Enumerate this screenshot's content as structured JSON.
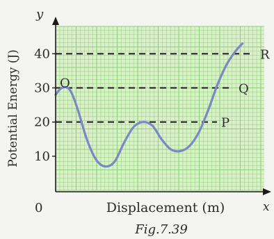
{
  "chart_data": {
    "type": "line",
    "xlabel": "Displacement (m)",
    "ylabel": "Potential Energy (J)",
    "x_axis_symbol": "x",
    "y_axis_symbol": "y",
    "origin_label": "0",
    "caption": "Fig.7.39",
    "ylim": [
      0,
      48
    ],
    "yticks": [
      10,
      20,
      30,
      40
    ],
    "grid": true,
    "series": [
      {
        "values": [
          [
            0.0,
            28.0
          ],
          [
            0.2,
            30.0
          ],
          [
            0.45,
            29.5
          ],
          [
            0.7,
            24.0
          ],
          [
            1.0,
            15.0
          ],
          [
            1.3,
            9.0
          ],
          [
            1.6,
            7.0
          ],
          [
            1.9,
            8.5
          ],
          [
            2.2,
            14.0
          ],
          [
            2.5,
            18.5
          ],
          [
            2.8,
            20.0
          ],
          [
            3.1,
            19.0
          ],
          [
            3.4,
            15.0
          ],
          [
            3.7,
            12.0
          ],
          [
            4.0,
            11.5
          ],
          [
            4.3,
            13.0
          ],
          [
            4.6,
            17.0
          ],
          [
            4.9,
            23.5
          ],
          [
            5.2,
            31.0
          ],
          [
            5.5,
            37.0
          ],
          [
            5.8,
            41.0
          ],
          [
            6.0,
            43.0
          ]
        ]
      }
    ],
    "levels": [
      {
        "label": "O",
        "value": 30
      },
      {
        "label": "Q",
        "value": 30
      },
      {
        "label": "P",
        "value": 20
      },
      {
        "label": "R",
        "value": 40
      }
    ],
    "xlim": [
      0,
      6.7
    ]
  },
  "colors": {
    "grid_fill": "#d9f0c8",
    "grid_line": "#8fd07a",
    "curve": "#7a89c4",
    "dash": "#1a1a1a",
    "text": "#2a2a2a"
  }
}
